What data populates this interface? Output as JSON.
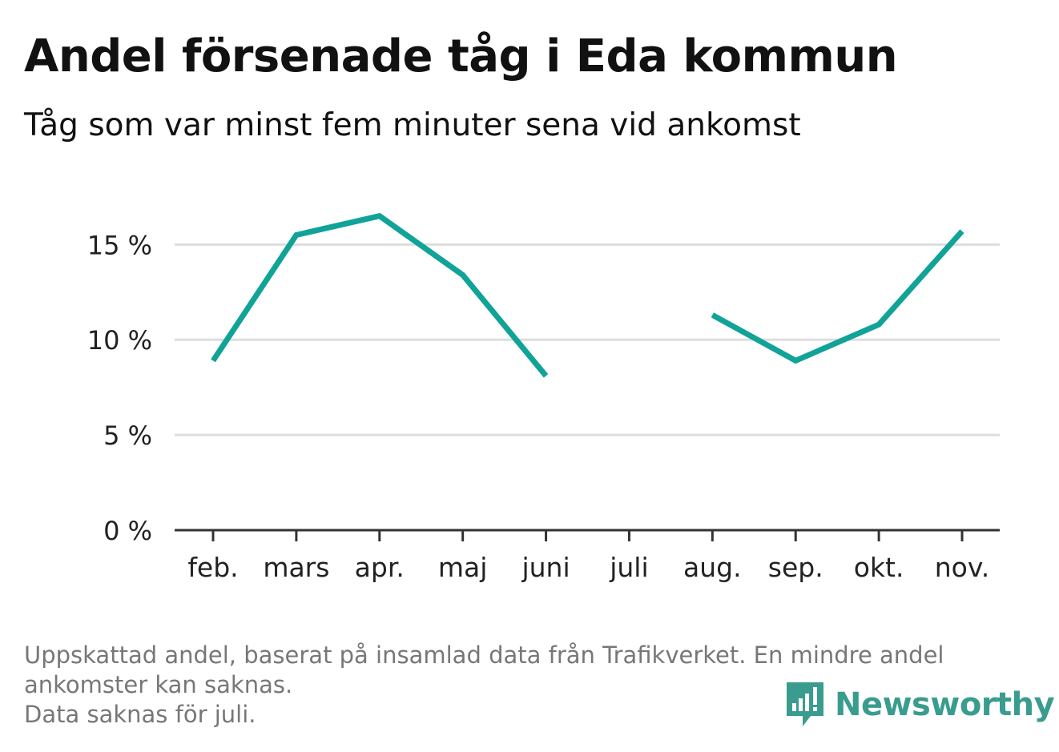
{
  "header": {
    "title": "Andel försenade tåg i Eda kommun",
    "subtitle": "Tåg som var minst fem minuter sena vid ankomst"
  },
  "chart_data": {
    "type": "line",
    "categories": [
      "feb.",
      "mars",
      "apr.",
      "maj",
      "juni",
      "juli",
      "aug.",
      "sep.",
      "okt.",
      "nov."
    ],
    "series": [
      {
        "values": [
          8.9,
          15.5,
          16.5,
          13.4,
          8.1,
          null,
          11.3,
          8.9,
          10.8,
          15.7
        ]
      }
    ],
    "yticks": [
      0,
      5,
      10,
      15
    ],
    "ytick_labels": [
      "0 %",
      "5 %",
      "10 %",
      "15 %"
    ],
    "ylim": [
      0,
      18
    ],
    "grid": true,
    "legend": "none",
    "line_color": "#11a398",
    "grid_color": "#dddddd",
    "axis_color": "#333333"
  },
  "footer": {
    "note_lines": [
      "Uppskattad andel, baserat på insamlad data från Trafikverket. En mindre andel",
      "ankomster kan saknas.",
      "Data saknas för juli."
    ],
    "brand_name": "Newsworthy",
    "brand_color": "#3a9c8e",
    "brand_icon": "newsworthy-logo-icon"
  }
}
